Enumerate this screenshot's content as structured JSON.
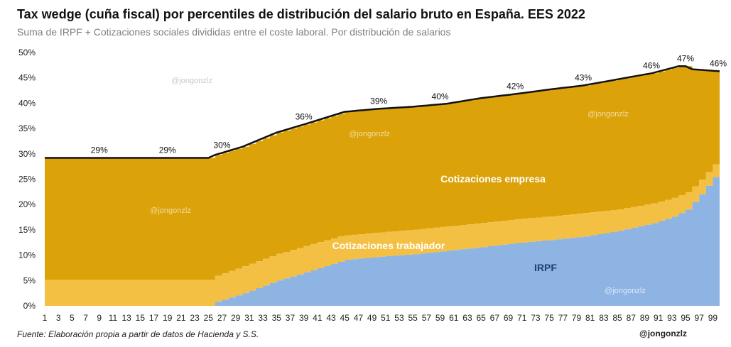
{
  "title": "Tax wedge (cuña fiscal) por percentiles de distribución del salario bruto en España. EES 2022",
  "subtitle": "Suma de IRPF + Cotizaciones sociales divididas entre el coste laboral. Por distribución de salarios",
  "source": "Fuente: Elaboración propia a partir de datos de Hacienda y S.S.",
  "handle": "@jongonzlz",
  "watermarks": [
    "@jongonzlz",
    "@jongonzlz",
    "@jongonzlz",
    "@jongonzlz",
    "@jongonzlz"
  ],
  "colors": {
    "irpf": "#8eb4e3",
    "trabajador": "#f4c043",
    "empresa": "#dba20a",
    "total_line": "#111111",
    "irpf_label": "#1f3e7a"
  },
  "chart_data": {
    "type": "area",
    "stacked": true,
    "x_tick_labels": [
      "1",
      "3",
      "5",
      "7",
      "9",
      "11",
      "13",
      "15",
      "17",
      "19",
      "21",
      "23",
      "25",
      "27",
      "29",
      "31",
      "33",
      "35",
      "37",
      "39",
      "41",
      "43",
      "45",
      "47",
      "49",
      "51",
      "53",
      "55",
      "57",
      "59",
      "61",
      "63",
      "65",
      "67",
      "69",
      "71",
      "73",
      "75",
      "77",
      "79",
      "81",
      "83",
      "85",
      "87",
      "89",
      "91",
      "93",
      "95",
      "97",
      "99"
    ],
    "y_tick_labels": [
      "0%",
      "5%",
      "10%",
      "15%",
      "20%",
      "25%",
      "30%",
      "35%",
      "40%",
      "45%",
      "50%"
    ],
    "ylim": [
      0,
      50
    ],
    "grid": false,
    "legend": "inline labels",
    "irpf_anchors": [
      [
        1,
        0
      ],
      [
        25,
        0
      ],
      [
        26,
        0.8
      ],
      [
        30,
        2.5
      ],
      [
        35,
        5
      ],
      [
        40,
        7
      ],
      [
        45,
        9.1
      ],
      [
        50,
        9.7
      ],
      [
        55,
        10.2
      ],
      [
        60,
        10.9
      ],
      [
        65,
        11.6
      ],
      [
        70,
        12.4
      ],
      [
        75,
        13.0
      ],
      [
        80,
        13.7
      ],
      [
        85,
        14.8
      ],
      [
        90,
        16.3
      ],
      [
        93,
        17.6
      ],
      [
        95,
        19.0
      ],
      [
        96,
        20.5
      ],
      [
        97,
        22.0
      ],
      [
        98,
        23.7
      ],
      [
        99,
        25.4
      ],
      [
        100,
        25.5
      ]
    ],
    "trabajador_anchors": [
      [
        1,
        5.1
      ],
      [
        25,
        5.1
      ],
      [
        30,
        5.3
      ],
      [
        40,
        5.2
      ],
      [
        44,
        5.0
      ],
      [
        45,
        4.8
      ],
      [
        60,
        4.8
      ],
      [
        80,
        4.6
      ],
      [
        93,
        3.7
      ],
      [
        95,
        3.4
      ],
      [
        96,
        3.1
      ],
      [
        97,
        2.9
      ],
      [
        98,
        2.7
      ],
      [
        99,
        2.5
      ],
      [
        100,
        2.4
      ]
    ],
    "total_anchors": [
      [
        1,
        29.2
      ],
      [
        25,
        29.2
      ],
      [
        26,
        29.8
      ],
      [
        30,
        31.4
      ],
      [
        35,
        34.2
      ],
      [
        40,
        36.2
      ],
      [
        45,
        38.3
      ],
      [
        50,
        38.9
      ],
      [
        55,
        39.3
      ],
      [
        60,
        39.9
      ],
      [
        65,
        41.0
      ],
      [
        70,
        41.8
      ],
      [
        75,
        42.7
      ],
      [
        80,
        43.5
      ],
      [
        85,
        44.7
      ],
      [
        90,
        45.9
      ],
      [
        94,
        47.3
      ],
      [
        95,
        47.3
      ],
      [
        96,
        46.7
      ],
      [
        100,
        46.3
      ]
    ],
    "point_labels": [
      {
        "x": 9,
        "value": 29,
        "text": "29%"
      },
      {
        "x": 19,
        "value": 29,
        "text": "29%"
      },
      {
        "x": 27,
        "value": 30,
        "text": "30%"
      },
      {
        "x": 39,
        "value": 36,
        "text": "36%"
      },
      {
        "x": 50,
        "value": 39,
        "text": "39%"
      },
      {
        "x": 59,
        "value": 40,
        "text": "40%"
      },
      {
        "x": 70,
        "value": 42,
        "text": "42%"
      },
      {
        "x": 80,
        "value": 43,
        "text": "43%"
      },
      {
        "x": 90,
        "value": 46,
        "text": "46%"
      },
      {
        "x": 95,
        "value": 47,
        "text": "47%"
      },
      {
        "x": 100,
        "value": 46,
        "text": "46%"
      }
    ],
    "series": [
      {
        "name": "IRPF"
      },
      {
        "name": "Cotizaciones trabajador"
      },
      {
        "name": "Cotizaciones empresa"
      }
    ]
  }
}
